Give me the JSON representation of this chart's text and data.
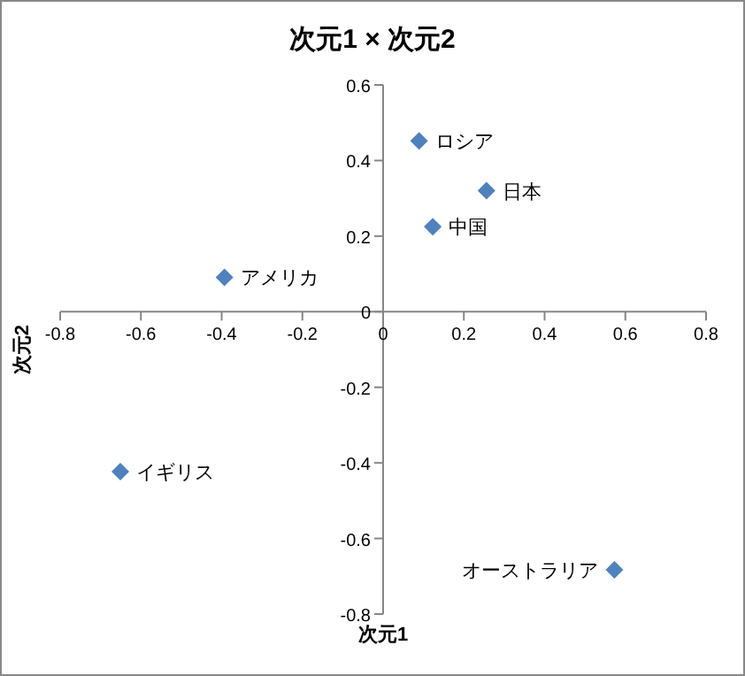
{
  "chart_data": {
    "type": "scatter",
    "title": "次元1 × 次元2",
    "xlabel": "次元1",
    "ylabel": "次元2",
    "series": [
      {
        "color": "#4f81bd",
        "x": [
          0.089,
          0.256,
          0.123,
          -0.393,
          -0.651,
          0.573
        ],
        "values": [
          0.452,
          0.32,
          0.225,
          0.091,
          -0.423,
          -0.683
        ]
      }
    ],
    "annotations": [
      {
        "text": "ロシア",
        "x": 0.089,
        "y": 0.452
      },
      {
        "text": "日本",
        "x": 0.256,
        "y": 0.32
      },
      {
        "text": "中国",
        "x": 0.123,
        "y": 0.225
      },
      {
        "text": "アメリカ",
        "x": -0.393,
        "y": 0.091
      },
      {
        "text": "イギリス",
        "x": -0.651,
        "y": -0.423
      },
      {
        "text": "オーストラリア",
        "x": 0.573,
        "y": -0.683
      }
    ],
    "marker": "diamond",
    "xlim": [
      -0.8,
      0.8
    ],
    "ylim": [
      -0.8,
      0.6
    ],
    "xticks": [
      {
        "value": -0.8,
        "label": "-0.8"
      },
      {
        "value": -0.6,
        "label": "-0.6"
      },
      {
        "value": -0.4,
        "label": "-0.4"
      },
      {
        "value": -0.2,
        "label": "-0.2"
      },
      0,
      0.2,
      0.4,
      0.6,
      0.8
    ],
    "yticks": [
      {
        "value": -0.8,
        "label": "-0.8"
      },
      {
        "value": -0.6,
        "label": "-0.6"
      },
      {
        "value": -0.4,
        "label": "-0.4"
      },
      {
        "value": -0.2,
        "label": "-0.2"
      },
      0,
      0.2,
      0.4,
      0.6
    ],
    "grid": false
  }
}
